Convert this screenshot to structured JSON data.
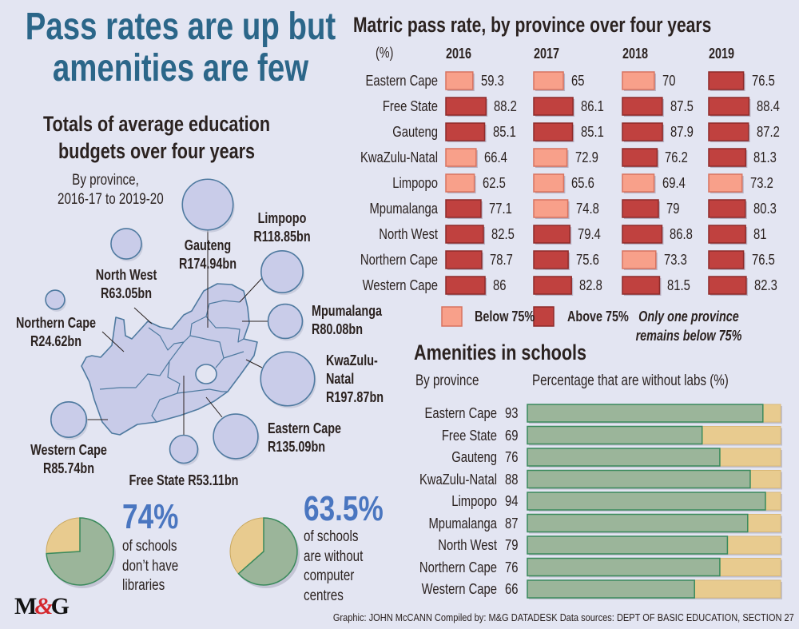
{
  "title": "Pass rates are up but amenities are few",
  "title_lines": [
    "Pass rates are up but",
    "amenities are few"
  ],
  "budget": {
    "title_lines": [
      "Totals of average education",
      "budgets over four years"
    ],
    "subtitle_lines": [
      "By province,",
      "2016-17 to 2019-20"
    ],
    "provinces": [
      {
        "name": "Gauteng",
        "value": "R174.94bn",
        "amount": 174.94
      },
      {
        "name": "Limpopo",
        "value": "R118.85bn",
        "amount": 118.85
      },
      {
        "name": "North West",
        "value": "R63.05bn",
        "amount": 63.05
      },
      {
        "name": "Northern Cape",
        "value": "R24.62bn",
        "amount": 24.62
      },
      {
        "name": "Mpumalanga",
        "value": "R80.08bn",
        "amount": 80.08
      },
      {
        "name": "KwaZulu-Natal",
        "value": "R197.87bn",
        "amount": 197.87
      },
      {
        "name": "Eastern Cape",
        "value": "R135.09bn",
        "amount": 135.09
      },
      {
        "name": "Western Cape",
        "value": "R85.74bn",
        "amount": 85.74
      },
      {
        "name": "Free State",
        "value": "R53.11bn",
        "amount": 53.11
      }
    ],
    "kzn_label_lines": [
      "KwaZulu-",
      "Natal"
    ]
  },
  "chart_data": [
    {
      "type": "bar",
      "title": "Matric pass rate, by province over four years",
      "unit_label": "(%)",
      "categories": [
        "Eastern Cape",
        "Free State",
        "Gauteng",
        "KwaZulu-Natal",
        "Limpopo",
        "Mpumalanga",
        "North West",
        "Northern Cape",
        "Western Cape"
      ],
      "series": [
        {
          "name": "2016",
          "values": [
            59.3,
            88.2,
            85.1,
            66.4,
            62.5,
            77.1,
            82.5,
            78.7,
            86
          ]
        },
        {
          "name": "2017",
          "values": [
            65,
            86.1,
            85.1,
            72.9,
            65.6,
            74.8,
            79.4,
            75.6,
            82.8
          ]
        },
        {
          "name": "2018",
          "values": [
            70,
            87.5,
            87.9,
            76.2,
            69.4,
            79,
            86.8,
            73.3,
            81.5
          ]
        },
        {
          "name": "2019",
          "values": [
            76.5,
            88.4,
            87.2,
            81.3,
            73.2,
            80.3,
            81,
            76.5,
            82.3
          ]
        }
      ],
      "threshold": 75,
      "legend": [
        {
          "label": "Below 75%",
          "color": "#f8a08a"
        },
        {
          "label": "Above 75%",
          "color": "#c0413f"
        }
      ],
      "note_lines": [
        "Only one province",
        "remains below 75%"
      ]
    },
    {
      "type": "bar",
      "title": "Amenities in schools",
      "row_header": "By province",
      "column_header": "Percentage that are without labs (%)",
      "categories": [
        "Eastern Cape",
        "Free State",
        "Gauteng",
        "KwaZulu-Natal",
        "Limpopo",
        "Mpumalanga",
        "North West",
        "Northern Cape",
        "Western Cape"
      ],
      "values": [
        93,
        69,
        76,
        88,
        94,
        87,
        79,
        76,
        66
      ],
      "ylim": [
        0,
        100
      ],
      "colors": {
        "value": "#9bb59a",
        "remainder": "#e8cb8f"
      }
    },
    {
      "type": "pie",
      "value_label": "74%",
      "value": 74,
      "caption_lines": [
        "of schools",
        "don’t have",
        "libraries"
      ]
    },
    {
      "type": "pie",
      "value_label": "63.5%",
      "value": 63.5,
      "caption_lines": [
        "of schools",
        "are without",
        "computer",
        "centres"
      ]
    }
  ],
  "logo": {
    "text": "M&G"
  },
  "footer": "Graphic: JOHN McCANN  Compiled by: M&G DATADESK  Data sources: DEPT OF BASIC EDUCATION, SECTION 27"
}
